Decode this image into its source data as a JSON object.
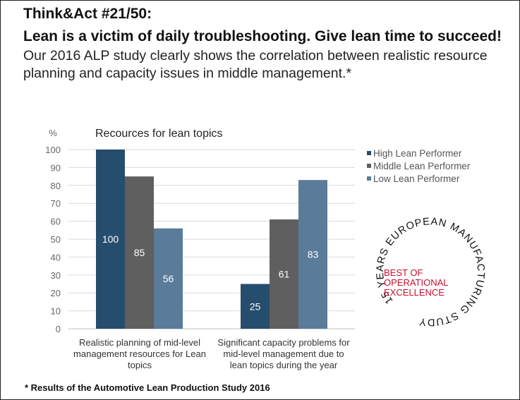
{
  "header": {
    "series": "Think&Act #21/50:",
    "headline": "Lean is a victim of daily troubleshooting. Give lean time to succeed!",
    "intro": "Our 2016 ALP study clearly shows the correlation between realistic resource planning and capacity issues in middle management.*"
  },
  "footnote": "* Results of the Automotive Lean Production Study 2016",
  "badge": {
    "ring_text": "15 YEARS EUROPEAN MANUFACTURING STUDY",
    "line1": "BEST OF",
    "line2": "OPERATIONAL",
    "line3": "EXCELLENCE"
  },
  "colors": {
    "high": "#264d6e",
    "middle": "#5f5f5f",
    "low": "#5a7b99",
    "badge_red": "#c8102e",
    "grid": "#d9d9d9"
  },
  "chart_data": {
    "type": "bar",
    "title": "Recources for lean topics",
    "ylabel": "%",
    "ylim": [
      0,
      100
    ],
    "yticks": [
      0,
      10,
      20,
      30,
      40,
      50,
      60,
      70,
      80,
      90,
      100
    ],
    "categories": [
      [
        "Realistic planning of mid-level",
        "management resources for Lean",
        "topics"
      ],
      [
        "Significant capacity problems for",
        "mid-level management due to",
        "lean topics during the year"
      ]
    ],
    "series": [
      {
        "name": "High Lean Performer",
        "values": [
          100,
          25
        ]
      },
      {
        "name": "Middle Lean Performer",
        "values": [
          85,
          61
        ]
      },
      {
        "name": "Low Lean Performer",
        "values": [
          56,
          83
        ]
      }
    ],
    "legend_position": "top-right"
  }
}
